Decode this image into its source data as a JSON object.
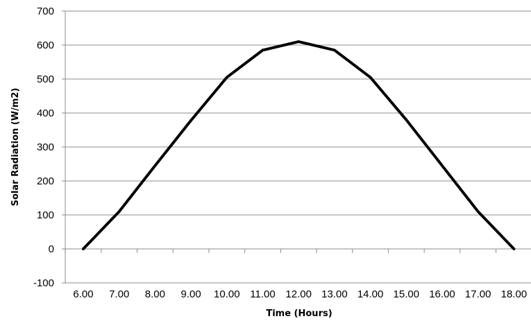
{
  "chart_data": {
    "type": "line",
    "title": "",
    "xlabel": "Time (Hours)",
    "ylabel": "Solar Radiation  (W/m2)",
    "categories": [
      "6.00",
      "7.00",
      "8.00",
      "9.00",
      "10.00",
      "11.00",
      "12.00",
      "13.00",
      "14.00",
      "15.00",
      "16.00",
      "17.00",
      "18.00"
    ],
    "series": [
      {
        "values": [
          0,
          110,
          245,
          378,
          505,
          585,
          610,
          585,
          505,
          380,
          245,
          110,
          0
        ],
        "color": "#000000"
      }
    ],
    "ylim": [
      -100,
      700
    ],
    "yticks": [
      "-100",
      "0",
      "100",
      "200",
      "300",
      "400",
      "500",
      "600",
      "700"
    ],
    "grid": "horizontal",
    "legend": "none"
  }
}
